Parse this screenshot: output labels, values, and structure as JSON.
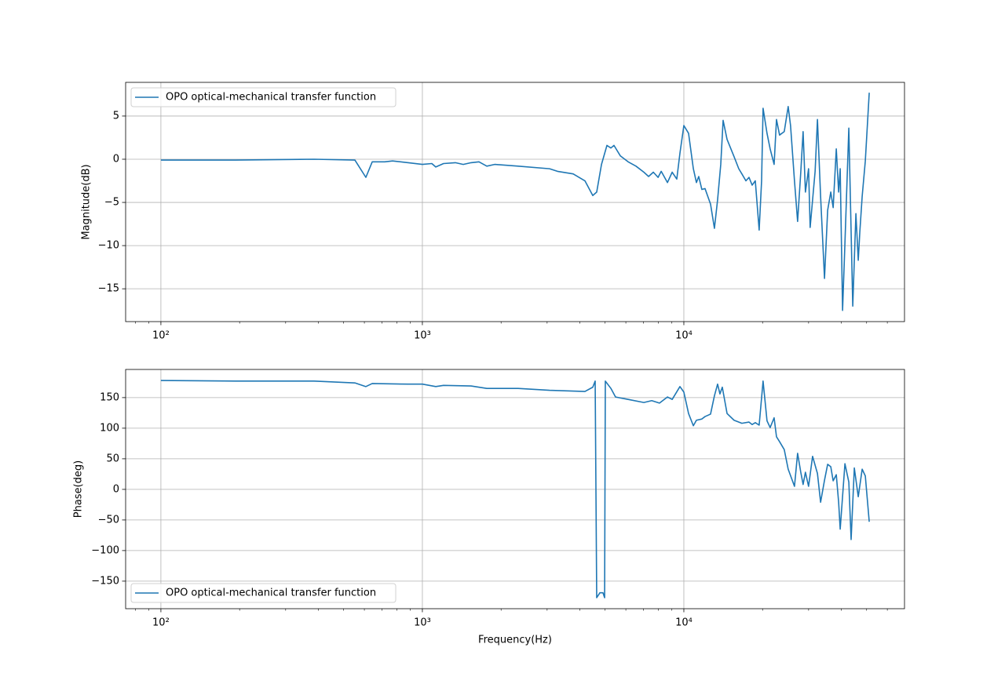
{
  "chart_data": [
    {
      "type": "line",
      "xscale": "log",
      "ylabel": "Magnitude(dB)",
      "grid": true,
      "legend": "upper left",
      "xlim": [
        73.3,
        69800
      ],
      "ylim": [
        -18.8,
        8.9
      ],
      "xticks": [
        {
          "value": 100,
          "label": "10²"
        },
        {
          "value": 1000,
          "label": "10³"
        },
        {
          "value": 10000,
          "label": "10⁴"
        }
      ],
      "xminorticks": [
        80,
        90,
        200,
        300,
        400,
        500,
        600,
        700,
        800,
        900,
        2000,
        3000,
        4000,
        5000,
        6000,
        7000,
        8000,
        9000,
        20000,
        30000,
        40000,
        50000,
        60000
      ],
      "yticks": [
        {
          "value": -15,
          "label": "−15"
        },
        {
          "value": -10,
          "label": "−10"
        },
        {
          "value": -5,
          "label": "−5"
        },
        0,
        5
      ],
      "x": [
        100,
        193,
        385,
        552,
        608,
        643,
        718,
        769,
        883,
        1000,
        1087,
        1125,
        1205,
        1337,
        1433,
        1536,
        1646,
        1764,
        1890,
        2325,
        3065,
        3285,
        3773,
        4185,
        4484,
        4642,
        4842,
        5080,
        5260,
        5405,
        5713,
        6122,
        6561,
        7031,
        7331,
        7643,
        7969,
        8192,
        8656,
        9024,
        9397,
        9661,
        10000,
        10424,
        10872,
        11170,
        11400,
        11720,
        12050,
        12650,
        13090,
        13460,
        13840,
        14130,
        14630,
        15560,
        16220,
        16670,
        17270,
        17750,
        18250,
        18760,
        19410,
        19830,
        20090,
        20800,
        21380,
        22140,
        22610,
        23230,
        24210,
        25060,
        25590,
        26490,
        27230,
        28000,
        28580,
        29170,
        29990,
        30410,
        31770,
        32430,
        33340,
        34510,
        35480,
        36470,
        37240,
        38280,
        39080,
        39620,
        40460,
        41310,
        42750,
        44260,
        45500,
        46450,
        47100,
        48080,
        49430,
        51170
      ],
      "series": [
        {
          "name": "OPO optical-mechanical transfer function",
          "color": "#1f77b4",
          "values": [
            -0.1,
            -0.1,
            0,
            -0.1,
            -2.1,
            -0.3,
            -0.3,
            -0.2,
            -0.4,
            -0.6,
            -0.5,
            -0.9,
            -0.5,
            -0.4,
            -0.6,
            -0.4,
            -0.3,
            -0.8,
            -0.6,
            -0.8,
            -1.1,
            -1.4,
            -1.7,
            -2.5,
            -4.2,
            -3.8,
            -0.6,
            1.6,
            1.3,
            1.6,
            0.4,
            -0.3,
            -0.8,
            -1.5,
            -2.0,
            -1.5,
            -2.1,
            -1.4,
            -2.7,
            -1.5,
            -2.3,
            0.7,
            3.9,
            3.0,
            -1.1,
            -2.7,
            -2.0,
            -3.5,
            -3.4,
            -5.2,
            -8.0,
            -4.7,
            -0.6,
            4.5,
            2.3,
            0.3,
            -1.1,
            -1.7,
            -2.5,
            -2.1,
            -3.0,
            -2.5,
            -8.2,
            -2.5,
            5.9,
            3.0,
            1.2,
            -0.6,
            4.6,
            2.8,
            3.2,
            6.1,
            3.9,
            -2.5,
            -7.2,
            -1.5,
            3.2,
            -3.8,
            -1.1,
            -7.9,
            -1.4,
            4.6,
            -4.3,
            -13.8,
            -5.9,
            -3.8,
            -5.6,
            1.2,
            -3.8,
            -1.1,
            -17.5,
            -9.7,
            3.6,
            -17.0,
            -6.3,
            -11.7,
            -8.4,
            -4.3,
            -0.2,
            7.7
          ]
        }
      ]
    },
    {
      "type": "line",
      "xscale": "log",
      "xlabel": "Frequency(Hz)",
      "ylabel": "Phase(deg)",
      "grid": true,
      "legend": "lower left",
      "xlim": [
        73.3,
        69800
      ],
      "ylim": [
        -195,
        196
      ],
      "xticks": [
        {
          "value": 100,
          "label": "10²"
        },
        {
          "value": 1000,
          "label": "10³"
        },
        {
          "value": 10000,
          "label": "10⁴"
        }
      ],
      "xminorticks": [
        80,
        90,
        200,
        300,
        400,
        500,
        600,
        700,
        800,
        900,
        2000,
        3000,
        4000,
        5000,
        6000,
        7000,
        8000,
        9000,
        20000,
        30000,
        40000,
        50000,
        60000
      ],
      "yticks": [
        {
          "value": -150,
          "label": "−150"
        },
        {
          "value": -100,
          "label": "−100"
        },
        {
          "value": -50,
          "label": "−50"
        },
        0,
        50,
        100,
        150
      ],
      "x": [
        100,
        193,
        385,
        552,
        608,
        643,
        883,
        1000,
        1125,
        1205,
        1536,
        1764,
        2325,
        3065,
        4185,
        4484,
        4580,
        4642,
        4775,
        4906,
        4977,
        5008,
        5260,
        5480,
        6122,
        7031,
        7537,
        8068,
        8656,
        9024,
        9661,
        10000,
        10424,
        10872,
        11170,
        11720,
        12050,
        12650,
        13090,
        13460,
        13740,
        14030,
        14630,
        15560,
        16670,
        17750,
        18250,
        18760,
        19410,
        20090,
        20800,
        21380,
        22140,
        22610,
        23230,
        24210,
        25060,
        26490,
        27230,
        28000,
        28580,
        29170,
        29990,
        31070,
        32430,
        33340,
        34510,
        35480,
        36470,
        37240,
        38280,
        39080,
        39620,
        41310,
        42750,
        43620,
        44870,
        46450,
        48080,
        49430,
        51170
      ],
      "series": [
        {
          "name": "OPO optical-mechanical transfer function",
          "color": "#1f77b4",
          "values": [
            178,
            177,
            177,
            174,
            168,
            173,
            172,
            172,
            168,
            170,
            169,
            165,
            165,
            162,
            160,
            167,
            177,
            -177,
            -169,
            -169,
            -177,
            177,
            165,
            151,
            147,
            142,
            145,
            141,
            151,
            147,
            168,
            159,
            124,
            104,
            113,
            115,
            119,
            123,
            153,
            172,
            156,
            167,
            124,
            113,
            108,
            110,
            106,
            109,
            105,
            177,
            112,
            101,
            117,
            86,
            78,
            65,
            33,
            5,
            59,
            28,
            8,
            28,
            5,
            54,
            26,
            -21,
            15,
            41,
            37,
            14,
            24,
            -21,
            -65,
            42,
            12,
            -82,
            35,
            -12,
            33,
            22,
            -53
          ]
        }
      ]
    }
  ]
}
